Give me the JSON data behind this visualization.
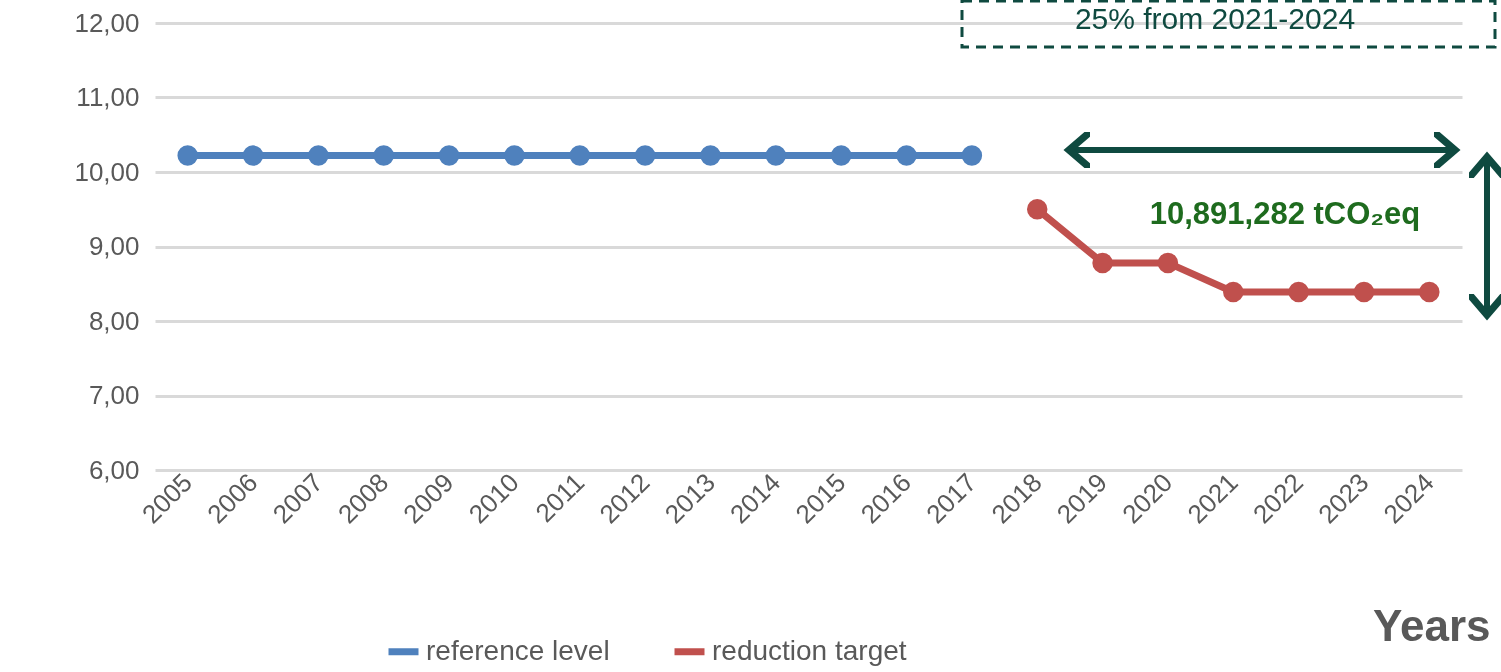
{
  "chart_data": {
    "type": "line",
    "xlabel": "Years",
    "categories": [
      "2005",
      "2006",
      "2007",
      "2008",
      "2009",
      "2010",
      "2011",
      "2012",
      "2013",
      "2014",
      "2015",
      "2016",
      "2017",
      "2018",
      "2019",
      "2020",
      "2021",
      "2022",
      "2023",
      "2024"
    ],
    "series": [
      {
        "name": "reference level",
        "color": "#4f81bd",
        "values": [
          10.22,
          10.22,
          10.22,
          10.22,
          10.22,
          10.22,
          10.22,
          10.22,
          10.22,
          10.22,
          10.22,
          10.22,
          10.22,
          null,
          null,
          null,
          null,
          null,
          null,
          null
        ]
      },
      {
        "name": "reduction target",
        "color": "#c0504d",
        "values": [
          null,
          null,
          null,
          null,
          null,
          null,
          null,
          null,
          null,
          null,
          null,
          null,
          null,
          9.5,
          8.78,
          8.78,
          8.39,
          8.39,
          8.39,
          8.39
        ]
      }
    ],
    "ylim": [
      6,
      12
    ],
    "yticks": [
      {
        "value": 6,
        "label": "6,00"
      },
      {
        "value": 7,
        "label": "7,00"
      },
      {
        "value": 8,
        "label": "8,00"
      },
      {
        "value": 9,
        "label": "9,00"
      },
      {
        "value": 10,
        "label": "10,00"
      },
      {
        "value": 11,
        "label": "11,00"
      },
      {
        "value": 12,
        "label": "12,00"
      }
    ],
    "annotations": [
      "25% from 2021-2024",
      "10,891,282 tCO₂eq"
    ],
    "grid": "y",
    "legend": "bottom",
    "marker": "circle",
    "line_style": "solid"
  }
}
